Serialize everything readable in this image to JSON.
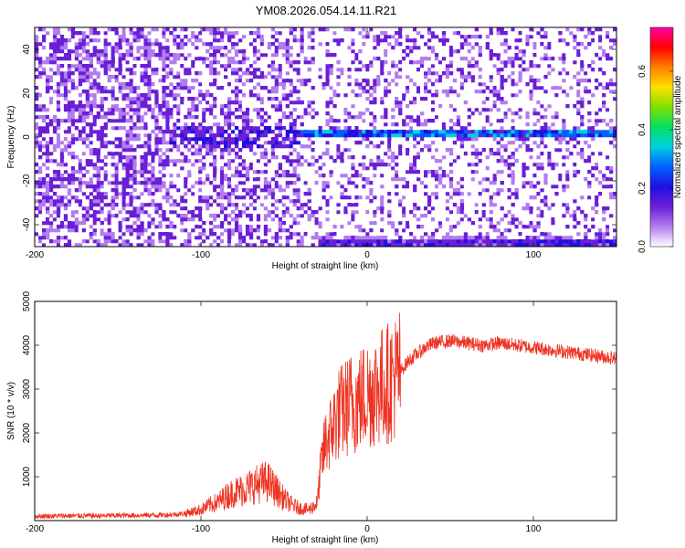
{
  "title": "YM08.2026.054.14.11.R21",
  "colors": {
    "background": "#ffffff",
    "axis": "#000000",
    "snr_line": "#ee3322",
    "spectrogram_low": "#ffffff",
    "spectrogram_mid": "#6a1fd6",
    "spectrogram_high": "#ff00aa"
  },
  "chart_data": [
    {
      "type": "heatmap",
      "xlabel": "Height of straight line (km)",
      "ylabel": "Frequency (Hz)",
      "xlim": [
        -200,
        150
      ],
      "ylim": [
        -50,
        50
      ],
      "x_ticks": [
        -200,
        -100,
        0,
        100
      ],
      "x_tick_labels": [
        "-200",
        "-100",
        "0",
        "100"
      ],
      "y_ticks": [
        -40,
        -20,
        0,
        20,
        40
      ],
      "y_tick_labels": [
        "-40",
        "-20",
        "0",
        "20",
        "40"
      ],
      "colorbar": {
        "label": "Normalized spectral amplitude",
        "range": [
          0,
          0.75
        ],
        "ticks": [
          0,
          0.2,
          0.4,
          0.6
        ],
        "tick_labels": [
          "0.0",
          "0.2",
          "0.4",
          "0.6"
        ],
        "colormap": [
          "#ffffff",
          "#b37cf0",
          "#6a1fd6",
          "#2010e0",
          "#0060ff",
          "#00d0e0",
          "#00e060",
          "#80e000",
          "#ffe000",
          "#ff8000",
          "#ff0000",
          "#ff00aa"
        ]
      },
      "features": [
        {
          "name": "carrier line",
          "x_range": [
            -40,
            150
          ],
          "frequency": 1,
          "amplitude": 0.25
        },
        {
          "name": "edge band",
          "x_range": [
            -30,
            150
          ],
          "frequency": -48,
          "amplitude": 0.15
        }
      ]
    },
    {
      "type": "line",
      "xlabel": "Height of straight line (km)",
      "ylabel": "SNR (10 * v/v)",
      "xlim": [
        -200,
        150
      ],
      "ylim": [
        0,
        5000
      ],
      "x_ticks": [
        -200,
        -100,
        0,
        100
      ],
      "x_tick_labels": [
        "-200",
        "-100",
        "0",
        "100"
      ],
      "y_ticks": [
        1000,
        2000,
        3000,
        4000,
        5000
      ],
      "y_tick_labels": [
        "1000",
        "2000",
        "3000",
        "4000",
        "5000"
      ],
      "grid": false,
      "series": [
        {
          "color": "#ee3322",
          "x": [
            -200,
            -180,
            -160,
            -140,
            -120,
            -110,
            -100,
            -95,
            -90,
            -85,
            -80,
            -75,
            -70,
            -65,
            -60,
            -55,
            -50,
            -45,
            -40,
            -35,
            -30,
            -28,
            -25,
            -22,
            -20,
            -18,
            -15,
            -12,
            -10,
            -8,
            -5,
            -3,
            0,
            5,
            10,
            15,
            20,
            25,
            30,
            35,
            40,
            50,
            60,
            70,
            80,
            90,
            100,
            110,
            120,
            130,
            140,
            150
          ],
          "y": [
            100,
            110,
            110,
            120,
            130,
            160,
            250,
            350,
            420,
            550,
            650,
            700,
            780,
            850,
            900,
            700,
            500,
            350,
            280,
            250,
            400,
            1200,
            1800,
            2000,
            2200,
            2400,
            2500,
            2600,
            2700,
            2650,
            2750,
            2800,
            2900,
            3000,
            3100,
            3200,
            3400,
            3650,
            3800,
            3950,
            4050,
            4100,
            4050,
            4000,
            4050,
            4000,
            3950,
            3900,
            3850,
            3800,
            3750,
            3700
          ]
        }
      ]
    }
  ]
}
